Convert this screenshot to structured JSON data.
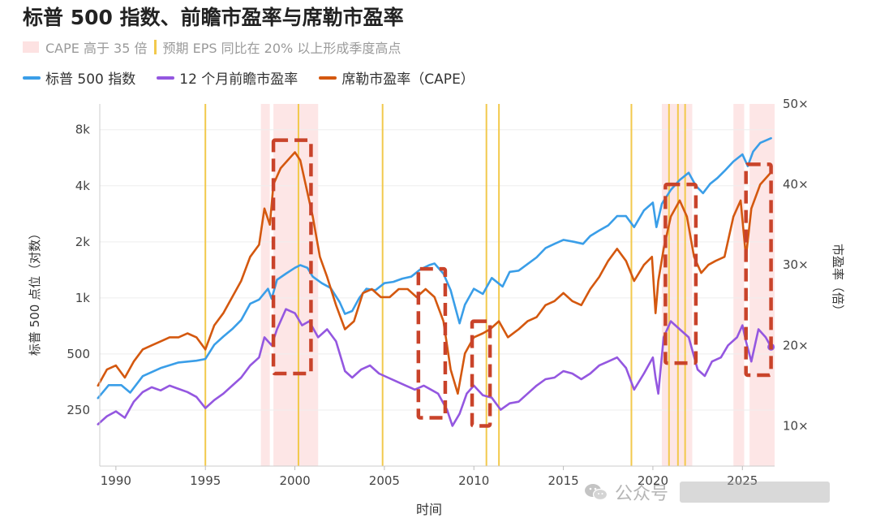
{
  "chart_data": {
    "type": "line",
    "title": "标普 500 指数、前瞻市盈率与席勒市盈率",
    "legend_bands": {
      "pink_label": "CAPE 高于 35 倍",
      "yellow_label": "预期 EPS 同比在 20% 以上形成季度高点",
      "pink_color": "#fde2e2",
      "yellow_color": "#f2c94c"
    },
    "xlabel": "时间",
    "ylabel_left": "标普 500 点位（对数）",
    "ylabel_right": "市盈率（倍）",
    "x_ticks": [
      "1990",
      "1995",
      "2000",
      "2005",
      "2010",
      "2015",
      "2020",
      "2025"
    ],
    "left_ticks": [
      "250",
      "500",
      "1k",
      "2k",
      "4k",
      "8k"
    ],
    "right_ticks": [
      "10×",
      "20×",
      "30×",
      "40×",
      "50×"
    ],
    "left_scale": "log",
    "x_range": [
      1989.1,
      2026.8
    ],
    "left_range": [
      125,
      11000
    ],
    "right_range": [
      5,
      50
    ],
    "grid": true,
    "legend_position": "top-left",
    "pink_bands": [
      [
        1998.1,
        1998.6
      ],
      [
        1998.8,
        2001.3
      ],
      [
        2020.5,
        2022.2
      ],
      [
        2024.5,
        2025.1
      ],
      [
        2025.4,
        2026.8
      ]
    ],
    "yellow_lines": [
      1995.0,
      2000.2,
      2004.9,
      2010.7,
      2011.4,
      2018.8,
      2020.9,
      2021.4,
      2021.8
    ],
    "highlight_boxes": [
      {
        "x": [
          1998.8,
          2000.9
        ],
        "y": [
          16.5,
          45.5
        ]
      },
      {
        "x": [
          2006.9,
          2008.4
        ],
        "y": [
          11.0,
          29.5
        ]
      },
      {
        "x": [
          2009.9,
          2010.9
        ],
        "y": [
          10.0,
          23.0
        ]
      },
      {
        "x": [
          2020.7,
          2022.4
        ],
        "y": [
          17.8,
          40.0
        ]
      },
      {
        "x": [
          2025.2,
          2026.6
        ],
        "y": [
          16.3,
          42.5
        ]
      }
    ],
    "series": [
      {
        "name": "标普 500 指数",
        "color": "#3a9ee8",
        "axis": "left",
        "x": [
          1989.0,
          1989.6,
          1990.3,
          1990.8,
          1991.5,
          1992.5,
          1993.5,
          1994.5,
          1995.0,
          1995.5,
          1996.0,
          1996.5,
          1997.0,
          1997.5,
          1998.0,
          1998.5,
          1998.7,
          1999.0,
          1999.5,
          2000.0,
          2000.3,
          2000.7,
          2001.0,
          2001.5,
          2002.0,
          2002.5,
          2002.8,
          2003.2,
          2003.6,
          2004.0,
          2004.5,
          2005.0,
          2005.5,
          2006.0,
          2006.5,
          2007.0,
          2007.5,
          2007.8,
          2008.3,
          2008.7,
          2009.2,
          2009.5,
          2010.0,
          2010.5,
          2011.0,
          2011.6,
          2012.0,
          2012.5,
          2013.0,
          2013.5,
          2014.0,
          2014.5,
          2015.0,
          2015.6,
          2016.1,
          2016.5,
          2017.0,
          2017.5,
          2018.0,
          2018.5,
          2018.95,
          2019.5,
          2020.0,
          2020.2,
          2020.5,
          2021.0,
          2021.5,
          2022.0,
          2022.4,
          2022.8,
          2023.2,
          2023.6,
          2024.0,
          2024.5,
          2025.0,
          2025.3,
          2025.6,
          2026.0,
          2026.6
        ],
        "y": [
          290,
          340,
          340,
          310,
          380,
          420,
          450,
          460,
          470,
          560,
          620,
          680,
          760,
          930,
          980,
          1120,
          990,
          1250,
          1350,
          1450,
          1500,
          1450,
          1300,
          1200,
          1130,
          950,
          820,
          850,
          1000,
          1120,
          1100,
          1200,
          1220,
          1270,
          1300,
          1420,
          1500,
          1530,
          1350,
          1100,
          730,
          920,
          1120,
          1050,
          1280,
          1150,
          1380,
          1400,
          1520,
          1650,
          1850,
          1950,
          2050,
          2000,
          1950,
          2150,
          2300,
          2450,
          2750,
          2750,
          2400,
          2950,
          3250,
          2400,
          3200,
          3800,
          4300,
          4700,
          4000,
          3650,
          4100,
          4400,
          4800,
          5400,
          5900,
          5100,
          6100,
          6800,
          7200
        ]
      },
      {
        "name": "12 个月前瞻市盈率",
        "color": "#9457e0",
        "axis": "right",
        "x": [
          1989.0,
          1989.5,
          1990.0,
          1990.5,
          1991.0,
          1991.5,
          1992.0,
          1992.5,
          1993.0,
          1993.5,
          1994.0,
          1994.5,
          1995.0,
          1995.5,
          1996.0,
          1996.5,
          1997.0,
          1997.5,
          1998.0,
          1998.3,
          1998.7,
          1999.0,
          1999.5,
          2000.0,
          2000.4,
          2000.8,
          2001.3,
          2001.8,
          2002.3,
          2002.8,
          2003.2,
          2003.7,
          2004.2,
          2004.7,
          2005.2,
          2005.7,
          2006.2,
          2006.7,
          2007.2,
          2007.6,
          2008.0,
          2008.5,
          2008.8,
          2009.2,
          2009.6,
          2010.0,
          2010.5,
          2011.0,
          2011.5,
          2012.0,
          2012.5,
          2013.0,
          2013.5,
          2014.0,
          2014.5,
          2015.0,
          2015.5,
          2016.0,
          2016.5,
          2017.0,
          2017.5,
          2018.0,
          2018.5,
          2018.95,
          2019.5,
          2020.0,
          2020.15,
          2020.3,
          2020.6,
          2021.0,
          2021.5,
          2022.0,
          2022.5,
          2022.9,
          2023.3,
          2023.8,
          2024.2,
          2024.7,
          2025.0,
          2025.2,
          2025.5,
          2025.9,
          2026.3,
          2026.6
        ],
        "y": [
          10.2,
          11.2,
          11.8,
          11.0,
          13.0,
          14.2,
          14.8,
          14.4,
          15.0,
          14.6,
          14.2,
          13.6,
          12.2,
          13.2,
          14.0,
          15.0,
          16.0,
          17.5,
          18.5,
          21.0,
          20.0,
          22.0,
          24.5,
          24.0,
          22.5,
          23.0,
          21.0,
          22.0,
          20.5,
          16.8,
          16.0,
          17.0,
          17.5,
          16.5,
          16.0,
          15.5,
          15.0,
          14.5,
          15.0,
          14.5,
          14.0,
          12.0,
          10.0,
          11.5,
          14.0,
          15.0,
          13.8,
          13.5,
          12.0,
          12.8,
          13.0,
          14.0,
          15.0,
          15.8,
          16.0,
          16.8,
          16.5,
          15.8,
          16.5,
          17.5,
          18.0,
          18.5,
          17.2,
          14.5,
          16.5,
          18.5,
          16.0,
          14.0,
          21.0,
          23.0,
          22.0,
          21.0,
          17.0,
          16.2,
          18.0,
          18.5,
          20.0,
          21.0,
          22.5,
          20.5,
          18.0,
          22.0,
          21.0,
          19.8
        ]
      },
      {
        "name": "席勒市盈率（CAPE）",
        "color": "#d4580f",
        "axis": "right",
        "x": [
          1989.0,
          1989.5,
          1990.0,
          1990.5,
          1991.0,
          1991.5,
          1992.0,
          1992.5,
          1993.0,
          1993.5,
          1994.0,
          1994.5,
          1995.0,
          1995.5,
          1996.0,
          1996.5,
          1997.0,
          1997.5,
          1998.0,
          1998.3,
          1998.6,
          1998.8,
          1999.2,
          1999.6,
          2000.0,
          2000.3,
          2000.6,
          2001.0,
          2001.4,
          2001.8,
          2002.3,
          2002.8,
          2003.3,
          2003.8,
          2004.3,
          2004.8,
          2005.3,
          2005.8,
          2006.3,
          2006.8,
          2007.3,
          2007.8,
          2008.3,
          2008.7,
          2009.1,
          2009.5,
          2010.0,
          2010.5,
          2010.9,
          2011.4,
          2011.9,
          2012.5,
          2013.0,
          2013.5,
          2014.0,
          2014.5,
          2015.0,
          2015.5,
          2016.0,
          2016.5,
          2017.0,
          2017.5,
          2018.0,
          2018.5,
          2018.95,
          2019.5,
          2019.95,
          2020.15,
          2020.3,
          2020.6,
          2021.0,
          2021.5,
          2021.9,
          2022.3,
          2022.7,
          2023.1,
          2023.5,
          2024.0,
          2024.5,
          2024.9,
          2025.2,
          2025.5,
          2026.0,
          2026.6
        ],
        "y": [
          15.0,
          17.0,
          17.5,
          16.0,
          18.0,
          19.5,
          20.0,
          20.5,
          21.0,
          21.0,
          21.5,
          21.0,
          19.5,
          22.5,
          24.0,
          26.0,
          28.0,
          31.0,
          32.5,
          37.0,
          35.0,
          40.0,
          42.0,
          43.0,
          44.0,
          43.0,
          40.0,
          36.0,
          31.0,
          28.5,
          25.0,
          22.0,
          23.0,
          26.5,
          27.0,
          26.0,
          26.0,
          27.0,
          27.0,
          26.0,
          27.0,
          26.0,
          23.0,
          17.0,
          14.0,
          19.0,
          21.0,
          21.5,
          22.0,
          23.0,
          21.0,
          22.0,
          23.0,
          23.5,
          25.0,
          25.5,
          26.5,
          25.5,
          25.0,
          27.0,
          28.5,
          30.5,
          32.0,
          30.5,
          28.0,
          30.0,
          31.0,
          24.0,
          28.0,
          32.0,
          36.0,
          38.0,
          36.0,
          31.0,
          29.0,
          30.0,
          30.5,
          31.0,
          36.0,
          38.0,
          31.0,
          37.0,
          40.0,
          41.5
        ]
      }
    ]
  },
  "watermark": {
    "text": "公众号",
    "icon": "wechat-icon"
  }
}
